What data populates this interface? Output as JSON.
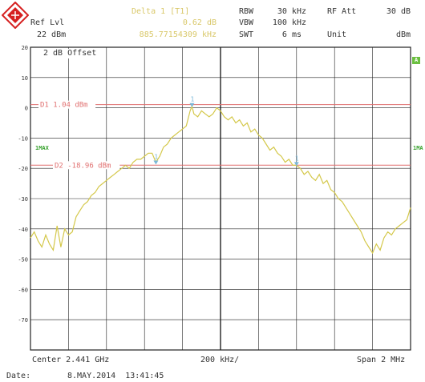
{
  "header": {
    "ref_lvl_label": "Ref Lvl",
    "ref_lvl_value": "22 dBm",
    "marker_title": "Delta 1 [T1]",
    "marker_level": "0.62 dB",
    "marker_freq": "885.77154309 kHz",
    "rbw_label": "RBW",
    "rbw_value": "30 kHz",
    "vbw_label": "VBW",
    "vbw_value": "100 kHz",
    "swt_label": "SWT",
    "swt_value": "6 ms",
    "rf_att_label": "RF Att",
    "rf_att_value": "30 dB",
    "unit_label": "Unit",
    "unit_value": "dBm"
  },
  "offset_label": "2 dB Offset",
  "side_tags": {
    "a": "A",
    "trace_left": "1MAX",
    "trace_right": "1MA"
  },
  "footer": {
    "center": "Center 2.441 GHz",
    "div": "200 kHz/",
    "span": "Span 2 MHz",
    "date_label": "Date:",
    "date_value": "8.MAY.2014  13:41:45"
  },
  "colors": {
    "trace": "#d4c84a",
    "display_line": "#e07070",
    "grid": "#222222",
    "marker": "#7ab8d8",
    "side_green": "#6bbf40"
  },
  "chart_data": {
    "type": "line",
    "y_ticks": [
      "20",
      "10",
      "0",
      "-10",
      "-20",
      "-30",
      "-40",
      "-50",
      "-60",
      "-70"
    ],
    "ylim": [
      -80,
      20
    ],
    "xlim": [
      0,
      10
    ],
    "display_lines": [
      {
        "label": "D1 1.04 dBm",
        "value": 1.04
      },
      {
        "label": "D2 -18.96 dBm",
        "value": -18.96
      }
    ],
    "markers": [
      {
        "label": "1",
        "x": 3.3,
        "y": -18.5
      },
      {
        "label": "1",
        "x": 4.25,
        "y": 0.5
      },
      {
        "label": "1",
        "x": 7.0,
        "y": -19.0
      }
    ],
    "series": [
      {
        "x": [
          0.0,
          0.1,
          0.2,
          0.3,
          0.4,
          0.5,
          0.6,
          0.7,
          0.8,
          0.9,
          1.0,
          1.1,
          1.2,
          1.3,
          1.4,
          1.5,
          1.6,
          1.7,
          1.8,
          1.9,
          2.0,
          2.1,
          2.2,
          2.3,
          2.4,
          2.5,
          2.6,
          2.7,
          2.8,
          2.9,
          3.0,
          3.1,
          3.2,
          3.3,
          3.4,
          3.5,
          3.6,
          3.7,
          3.8,
          3.9,
          4.0,
          4.1,
          4.2,
          4.25,
          4.3,
          4.4,
          4.5,
          4.6,
          4.7,
          4.8,
          4.9,
          5.0,
          5.1,
          5.2,
          5.3,
          5.4,
          5.5,
          5.6,
          5.7,
          5.8,
          5.9,
          6.0,
          6.1,
          6.2,
          6.3,
          6.4,
          6.5,
          6.6,
          6.7,
          6.8,
          6.9,
          7.0,
          7.1,
          7.2,
          7.3,
          7.4,
          7.5,
          7.6,
          7.7,
          7.8,
          7.9,
          8.0,
          8.1,
          8.2,
          8.3,
          8.4,
          8.5,
          8.6,
          8.7,
          8.8,
          8.9,
          9.0,
          9.1,
          9.2,
          9.3,
          9.4,
          9.5,
          9.6,
          9.7,
          9.8,
          9.9,
          10.0
        ],
        "values": [
          -43,
          -41,
          -44,
          -46,
          -42,
          -45,
          -47,
          -39,
          -46,
          -40,
          -42,
          -41,
          -36,
          -34,
          -32,
          -31,
          -29,
          -28,
          -26,
          -25,
          -24,
          -23,
          -22,
          -21,
          -20,
          -19,
          -20,
          -18,
          -17,
          -17,
          -16,
          -15,
          -15,
          -18,
          -16,
          -13,
          -12,
          -10,
          -9,
          -8,
          -7,
          -6,
          -1,
          0.5,
          -2,
          -3,
          -1,
          -2,
          -3,
          -2,
          0,
          -1,
          -3,
          -4,
          -3,
          -5,
          -4,
          -6,
          -5,
          -8,
          -7,
          -9,
          -10,
          -12,
          -14,
          -13,
          -15,
          -16,
          -18,
          -17,
          -19,
          -19,
          -20,
          -22,
          -21,
          -23,
          -24,
          -22,
          -25,
          -24,
          -27,
          -28,
          -30,
          -31,
          -33,
          -35,
          -37,
          -39,
          -41,
          -44,
          -46,
          -48,
          -45,
          -47,
          -43,
          -41,
          -42,
          -40,
          -39,
          -38,
          -37,
          -33
        ]
      }
    ]
  }
}
